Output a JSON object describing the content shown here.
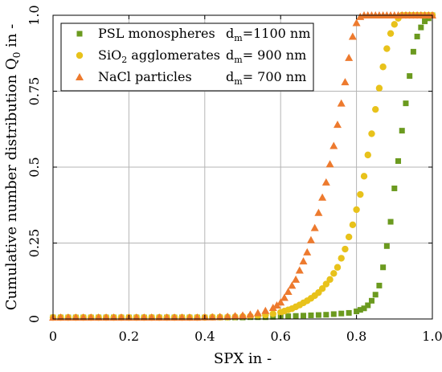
{
  "chart_data": {
    "type": "scatter",
    "title": "",
    "xlabel": "SPX in -",
    "ylabel": "Cumulative number distribution Q",
    "ylabel_sub": "0",
    "ylabel_suffix": " in -",
    "xlim": [
      0,
      1
    ],
    "ylim": [
      0,
      1
    ],
    "x_ticks": [
      0,
      0.2,
      0.4,
      0.6,
      0.8,
      1
    ],
    "x_tick_labels": [
      "0",
      "0.2",
      "0.4",
      "0.6",
      "0.8",
      "1.0"
    ],
    "y_ticks": [
      0,
      0.25,
      0.5,
      0.75,
      1
    ],
    "y_tick_labels": [
      "0",
      "0.25",
      "0.5",
      "0.75",
      "1.0"
    ],
    "grid": true,
    "legend_position": "top-left",
    "legend": [
      {
        "label_main": "PSL monospheres",
        "label_sub": "",
        "label_after": "",
        "dm_text": "=1100 nm"
      },
      {
        "label_main": "SiO",
        "label_sub": "2",
        "label_after": " agglomerates",
        "dm_text": "= 900 nm"
      },
      {
        "label_main": "NaCl particles",
        "label_sub": "",
        "label_after": "",
        "dm_text": "= 700 nm"
      }
    ],
    "dm_symbol": "d",
    "dm_sub": "m",
    "series": [
      {
        "name": "PSL monospheres d_m=1100 nm",
        "marker": "square",
        "color": "#6b9a1f",
        "points": [
          [
            0,
            0.005
          ],
          [
            0.02,
            0.005
          ],
          [
            0.04,
            0.005
          ],
          [
            0.06,
            0.005
          ],
          [
            0.08,
            0.005
          ],
          [
            0.1,
            0.005
          ],
          [
            0.12,
            0.005
          ],
          [
            0.14,
            0.005
          ],
          [
            0.16,
            0.005
          ],
          [
            0.18,
            0.005
          ],
          [
            0.2,
            0.005
          ],
          [
            0.22,
            0.005
          ],
          [
            0.24,
            0.005
          ],
          [
            0.26,
            0.005
          ],
          [
            0.28,
            0.005
          ],
          [
            0.3,
            0.005
          ],
          [
            0.32,
            0.005
          ],
          [
            0.34,
            0.005
          ],
          [
            0.36,
            0.005
          ],
          [
            0.38,
            0.005
          ],
          [
            0.4,
            0.005
          ],
          [
            0.42,
            0.005
          ],
          [
            0.44,
            0.005
          ],
          [
            0.46,
            0.005
          ],
          [
            0.48,
            0.005
          ],
          [
            0.5,
            0.005
          ],
          [
            0.52,
            0.006
          ],
          [
            0.54,
            0.006
          ],
          [
            0.56,
            0.006
          ],
          [
            0.58,
            0.007
          ],
          [
            0.6,
            0.008
          ],
          [
            0.62,
            0.009
          ],
          [
            0.64,
            0.01
          ],
          [
            0.66,
            0.011
          ],
          [
            0.68,
            0.012
          ],
          [
            0.7,
            0.013
          ],
          [
            0.72,
            0.014
          ],
          [
            0.74,
            0.016
          ],
          [
            0.76,
            0.018
          ],
          [
            0.78,
            0.02
          ],
          [
            0.8,
            0.025
          ],
          [
            0.81,
            0.03
          ],
          [
            0.82,
            0.035
          ],
          [
            0.83,
            0.045
          ],
          [
            0.84,
            0.06
          ],
          [
            0.85,
            0.08
          ],
          [
            0.86,
            0.11
          ],
          [
            0.87,
            0.17
          ],
          [
            0.88,
            0.24
          ],
          [
            0.89,
            0.32
          ],
          [
            0.9,
            0.43
          ],
          [
            0.91,
            0.52
          ],
          [
            0.92,
            0.62
          ],
          [
            0.93,
            0.71
          ],
          [
            0.94,
            0.8
          ],
          [
            0.95,
            0.88
          ],
          [
            0.96,
            0.93
          ],
          [
            0.97,
            0.96
          ],
          [
            0.98,
            0.98
          ],
          [
            0.99,
            0.99
          ],
          [
            1.0,
            1.0
          ]
        ]
      },
      {
        "name": "SiO2 agglomerates d_m= 900 nm",
        "marker": "circle",
        "color": "#e8c21b",
        "points": [
          [
            0,
            0.005
          ],
          [
            0.02,
            0.005
          ],
          [
            0.04,
            0.005
          ],
          [
            0.06,
            0.005
          ],
          [
            0.08,
            0.005
          ],
          [
            0.1,
            0.005
          ],
          [
            0.12,
            0.005
          ],
          [
            0.14,
            0.005
          ],
          [
            0.16,
            0.005
          ],
          [
            0.18,
            0.005
          ],
          [
            0.2,
            0.005
          ],
          [
            0.22,
            0.005
          ],
          [
            0.24,
            0.005
          ],
          [
            0.26,
            0.005
          ],
          [
            0.28,
            0.005
          ],
          [
            0.3,
            0.005
          ],
          [
            0.32,
            0.005
          ],
          [
            0.34,
            0.005
          ],
          [
            0.36,
            0.005
          ],
          [
            0.38,
            0.005
          ],
          [
            0.4,
            0.005
          ],
          [
            0.42,
            0.006
          ],
          [
            0.44,
            0.006
          ],
          [
            0.46,
            0.006
          ],
          [
            0.48,
            0.007
          ],
          [
            0.5,
            0.008
          ],
          [
            0.52,
            0.009
          ],
          [
            0.54,
            0.011
          ],
          [
            0.56,
            0.013
          ],
          [
            0.58,
            0.017
          ],
          [
            0.6,
            0.022
          ],
          [
            0.61,
            0.026
          ],
          [
            0.62,
            0.03
          ],
          [
            0.63,
            0.034
          ],
          [
            0.64,
            0.04
          ],
          [
            0.65,
            0.046
          ],
          [
            0.66,
            0.053
          ],
          [
            0.67,
            0.06
          ],
          [
            0.68,
            0.068
          ],
          [
            0.69,
            0.077
          ],
          [
            0.7,
            0.087
          ],
          [
            0.71,
            0.1
          ],
          [
            0.72,
            0.115
          ],
          [
            0.73,
            0.13
          ],
          [
            0.74,
            0.15
          ],
          [
            0.75,
            0.17
          ],
          [
            0.76,
            0.2
          ],
          [
            0.77,
            0.23
          ],
          [
            0.78,
            0.27
          ],
          [
            0.79,
            0.31
          ],
          [
            0.8,
            0.36
          ],
          [
            0.81,
            0.41
          ],
          [
            0.82,
            0.47
          ],
          [
            0.83,
            0.54
          ],
          [
            0.84,
            0.61
          ],
          [
            0.85,
            0.69
          ],
          [
            0.86,
            0.76
          ],
          [
            0.87,
            0.83
          ],
          [
            0.88,
            0.89
          ],
          [
            0.89,
            0.94
          ],
          [
            0.9,
            0.97
          ],
          [
            0.91,
            0.99
          ],
          [
            0.92,
            1.0
          ],
          [
            0.93,
            1.0
          ],
          [
            0.94,
            1.0
          ],
          [
            0.95,
            1.0
          ],
          [
            0.96,
            1.0
          ],
          [
            0.97,
            1.0
          ],
          [
            0.98,
            1.0
          ],
          [
            0.99,
            1.0
          ],
          [
            1.0,
            1.0
          ]
        ]
      },
      {
        "name": "NaCl particles d_m= 700 nm",
        "marker": "triangle",
        "color": "#ed7a2e",
        "points": [
          [
            0,
            0.005
          ],
          [
            0.02,
            0.005
          ],
          [
            0.04,
            0.005
          ],
          [
            0.06,
            0.005
          ],
          [
            0.08,
            0.005
          ],
          [
            0.1,
            0.005
          ],
          [
            0.12,
            0.005
          ],
          [
            0.14,
            0.005
          ],
          [
            0.16,
            0.005
          ],
          [
            0.18,
            0.005
          ],
          [
            0.2,
            0.005
          ],
          [
            0.22,
            0.005
          ],
          [
            0.24,
            0.005
          ],
          [
            0.26,
            0.005
          ],
          [
            0.28,
            0.005
          ],
          [
            0.3,
            0.005
          ],
          [
            0.32,
            0.005
          ],
          [
            0.34,
            0.005
          ],
          [
            0.36,
            0.005
          ],
          [
            0.38,
            0.005
          ],
          [
            0.4,
            0.006
          ],
          [
            0.42,
            0.006
          ],
          [
            0.44,
            0.007
          ],
          [
            0.46,
            0.008
          ],
          [
            0.48,
            0.01
          ],
          [
            0.5,
            0.012
          ],
          [
            0.52,
            0.015
          ],
          [
            0.54,
            0.02
          ],
          [
            0.56,
            0.027
          ],
          [
            0.58,
            0.037
          ],
          [
            0.59,
            0.045
          ],
          [
            0.6,
            0.055
          ],
          [
            0.61,
            0.07
          ],
          [
            0.62,
            0.09
          ],
          [
            0.63,
            0.11
          ],
          [
            0.64,
            0.13
          ],
          [
            0.65,
            0.16
          ],
          [
            0.66,
            0.19
          ],
          [
            0.67,
            0.22
          ],
          [
            0.68,
            0.26
          ],
          [
            0.69,
            0.3
          ],
          [
            0.7,
            0.35
          ],
          [
            0.71,
            0.4
          ],
          [
            0.72,
            0.45
          ],
          [
            0.73,
            0.51
          ],
          [
            0.74,
            0.57
          ],
          [
            0.75,
            0.64
          ],
          [
            0.76,
            0.71
          ],
          [
            0.77,
            0.78
          ],
          [
            0.78,
            0.86
          ],
          [
            0.79,
            0.93
          ],
          [
            0.8,
            0.975
          ],
          [
            0.81,
            0.995
          ],
          [
            0.82,
            1.0
          ],
          [
            0.83,
            1.0
          ],
          [
            0.84,
            1.0
          ],
          [
            0.85,
            1.0
          ],
          [
            0.86,
            1.0
          ],
          [
            0.87,
            1.0
          ],
          [
            0.88,
            1.0
          ],
          [
            0.89,
            1.0
          ],
          [
            0.9,
            1.0
          ],
          [
            0.91,
            1.0
          ],
          [
            0.92,
            1.0
          ],
          [
            0.93,
            1.0
          ],
          [
            0.94,
            1.0
          ],
          [
            0.95,
            1.0
          ],
          [
            0.96,
            1.0
          ],
          [
            0.97,
            1.0
          ],
          [
            0.98,
            1.0
          ],
          [
            0.99,
            1.0
          ],
          [
            1.0,
            1.0
          ]
        ]
      }
    ]
  }
}
